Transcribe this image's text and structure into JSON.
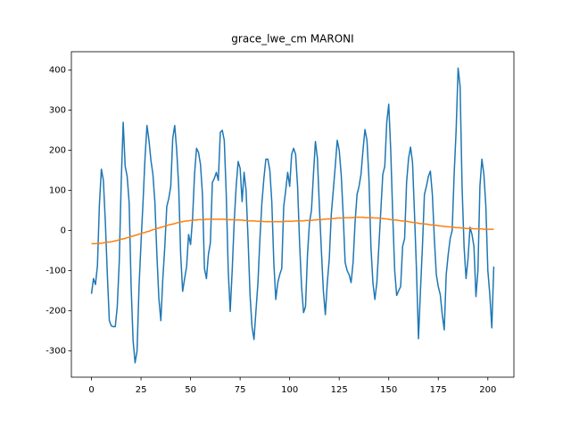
{
  "chart_data": {
    "type": "line",
    "title": "grace_lwe_cm MARONI",
    "xlim": [
      -10.15,
      213.15
    ],
    "xticks": [
      0,
      25,
      50,
      75,
      100,
      125,
      150,
      175,
      200
    ],
    "ylim": [
      -366,
      446
    ],
    "yticks": [
      -300,
      -200,
      -100,
      0,
      100,
      200,
      300,
      400
    ],
    "grid": false,
    "series": [
      {
        "color": "#1f77b4",
        "values": [
          -158,
          -120,
          -135,
          -88,
          65,
          153,
          125,
          20,
          -110,
          -225,
          -238,
          -240,
          -240,
          -190,
          -80,
          120,
          270,
          160,
          135,
          70,
          -140,
          -275,
          -330,
          -300,
          -140,
          -30,
          70,
          180,
          262,
          225,
          175,
          140,
          70,
          -60,
          -170,
          -225,
          -120,
          -40,
          60,
          80,
          110,
          230,
          262,
          200,
          110,
          -60,
          -152,
          -120,
          -90,
          -10,
          -35,
          30,
          140,
          205,
          195,
          165,
          90,
          -95,
          -120,
          -60,
          -30,
          120,
          130,
          145,
          125,
          245,
          250,
          225,
          90,
          -100,
          -202,
          -100,
          20,
          110,
          172,
          155,
          72,
          145,
          100,
          -20,
          -160,
          -240,
          -272,
          -200,
          -130,
          -20,
          70,
          130,
          178,
          178,
          150,
          70,
          -80,
          -172,
          -130,
          -110,
          -95,
          60,
          100,
          145,
          110,
          190,
          205,
          190,
          110,
          -30,
          -140,
          -205,
          -190,
          -60,
          20,
          50,
          140,
          222,
          180,
          60,
          -50,
          -150,
          -210,
          -130,
          -70,
          40,
          100,
          160,
          225,
          200,
          140,
          40,
          -80,
          -100,
          -110,
          -130,
          -80,
          20,
          90,
          110,
          140,
          200,
          252,
          225,
          130,
          -40,
          -130,
          -172,
          -130,
          -40,
          50,
          140,
          160,
          270,
          315,
          200,
          40,
          -100,
          -162,
          -150,
          -140,
          -40,
          -20,
          120,
          180,
          208,
          170,
          40,
          -100,
          -270,
          -150,
          -40,
          90,
          110,
          135,
          148,
          90,
          -20,
          -110,
          -140,
          -160,
          -210,
          -248,
          -110,
          -60,
          -20,
          0,
          140,
          250,
          405,
          360,
          110,
          -40,
          -120,
          -70,
          8,
          -10,
          -40,
          -165,
          -100,
          110,
          178,
          140,
          60,
          -100,
          -160,
          -243,
          -90
        ]
      },
      {
        "color": "#ff7f0e",
        "values": [
          -33,
          -33,
          -33,
          -32,
          -32,
          -32,
          -31,
          -30,
          -29,
          -29,
          -28,
          -27,
          -26,
          -25,
          -23,
          -22,
          -21,
          -20,
          -18,
          -17,
          -15,
          -14,
          -12,
          -11,
          -9,
          -8,
          -6,
          -5,
          -3,
          -2,
          0,
          2,
          3,
          5,
          6,
          8,
          9,
          11,
          12,
          14,
          15,
          16,
          17,
          19,
          20,
          21,
          22,
          23,
          24,
          24,
          25,
          25,
          26,
          26,
          27,
          27,
          27,
          27,
          28,
          28,
          28,
          28,
          28,
          28,
          28,
          28,
          28,
          28,
          27,
          27,
          27,
          27,
          27,
          26,
          26,
          26,
          26,
          25,
          25,
          24,
          24,
          24,
          24,
          23,
          23,
          23,
          23,
          22,
          22,
          22,
          22,
          22,
          22,
          22,
          22,
          22,
          22,
          22,
          23,
          23,
          23,
          23,
          23,
          24,
          24,
          24,
          24,
          24,
          25,
          25,
          25,
          25,
          26,
          26,
          27,
          27,
          27,
          28,
          28,
          29,
          29,
          29,
          30,
          30,
          31,
          31,
          31,
          31,
          32,
          32,
          32,
          32,
          32,
          33,
          33,
          33,
          33,
          33,
          32,
          32,
          32,
          32,
          32,
          31,
          31,
          31,
          30,
          30,
          29,
          29,
          28,
          27,
          27,
          26,
          26,
          25,
          24,
          24,
          23,
          23,
          22,
          21,
          20,
          20,
          19,
          18,
          17,
          17,
          16,
          16,
          15,
          14,
          14,
          13,
          13,
          12,
          11,
          11,
          10,
          10,
          9,
          9,
          8,
          8,
          7,
          7,
          7,
          6,
          6,
          5,
          5,
          5,
          5,
          4,
          4,
          4,
          4,
          4,
          3,
          3,
          3,
          3,
          3,
          3
        ]
      }
    ]
  }
}
